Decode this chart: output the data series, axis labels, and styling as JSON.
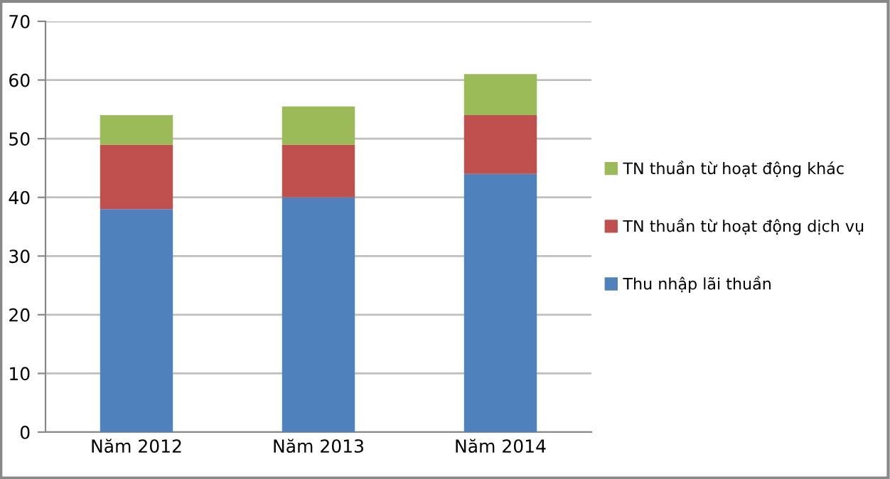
{
  "chart_data": {
    "type": "bar",
    "stacked": true,
    "categories": [
      "Năm 2012",
      "Năm 2013",
      "Năm 2014"
    ],
    "series": [
      {
        "name": "Thu nhập lãi thuần",
        "color": "#4f81bd",
        "values": [
          38,
          40,
          44
        ]
      },
      {
        "name": "TN thuần từ hoạt động dịch vụ",
        "color": "#c0504d",
        "values": [
          11,
          9,
          10
        ]
      },
      {
        "name": "TN thuần từ hoạt động khác",
        "color": "#9bbb59",
        "values": [
          5,
          6.5,
          7
        ]
      }
    ],
    "ylim": [
      0,
      70
    ],
    "yticks": [
      0,
      10,
      20,
      30,
      40,
      50,
      60,
      70
    ],
    "grid": "y",
    "legend": "right"
  }
}
